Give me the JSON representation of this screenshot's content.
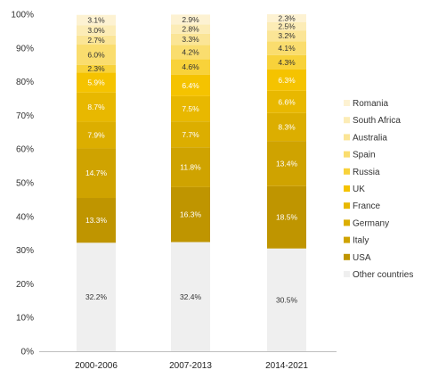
{
  "chart_data": {
    "type": "bar",
    "stacked": true,
    "categories": [
      "2000-2006",
      "2007-2013",
      "2014-2021"
    ],
    "ylim": [
      0,
      100
    ],
    "yticks": [
      "0%",
      "10%",
      "20%",
      "30%",
      "40%",
      "50%",
      "60%",
      "70%",
      "80%",
      "90%",
      "100%"
    ],
    "legend_position": "right",
    "series": [
      {
        "name": "Other countries",
        "color": "#efefef",
        "label_color": "#333333",
        "values": [
          32.2,
          32.4,
          30.5
        ],
        "labels": [
          "32.2%",
          "32.4%",
          "30.5%"
        ]
      },
      {
        "name": "USA",
        "color": "#bf9500",
        "label_color": "#ffffff",
        "values": [
          13.3,
          16.3,
          18.5
        ],
        "labels": [
          "13.3%",
          "16.3%",
          "18.5%"
        ]
      },
      {
        "name": "Italy",
        "color": "#cfa300",
        "label_color": "#ffffff",
        "values": [
          14.7,
          11.8,
          13.4
        ],
        "labels": [
          "14.7%",
          "11.8%",
          "13.4%"
        ]
      },
      {
        "name": "Germany",
        "color": "#dcae00",
        "label_color": "#ffffff",
        "values": [
          7.9,
          7.7,
          8.3
        ],
        "labels": [
          "7.9%",
          "7.7%",
          "8.3%"
        ]
      },
      {
        "name": "France",
        "color": "#e8b800",
        "label_color": "#ffffff",
        "values": [
          8.7,
          7.5,
          6.6
        ],
        "labels": [
          "8.7%",
          "7.5%",
          "6.6%"
        ]
      },
      {
        "name": "UK",
        "color": "#f5c300",
        "label_color": "#ffffff",
        "values": [
          5.9,
          6.4,
          6.3
        ],
        "labels": [
          "5.9%",
          "6.4%",
          "6.3%"
        ]
      },
      {
        "name": "Russia",
        "color": "#f8d23a",
        "label_color": "#333333",
        "values": [
          2.3,
          4.6,
          4.3
        ],
        "labels": [
          "2.3%",
          "4.6%",
          "4.3%"
        ]
      },
      {
        "name": "Spain",
        "color": "#fadd6e",
        "label_color": "#333333",
        "values": [
          6.0,
          4.2,
          4.1
        ],
        "labels": [
          "6.0%",
          "4.2%",
          "4.1%"
        ]
      },
      {
        "name": "Australia",
        "color": "#fbe596",
        "label_color": "#333333",
        "values": [
          2.7,
          3.3,
          3.2
        ],
        "labels": [
          "2.7%",
          "3.3%",
          "3.2%"
        ]
      },
      {
        "name": "South Africa",
        "color": "#fcecb6",
        "label_color": "#333333",
        "values": [
          3.0,
          2.8,
          2.5
        ],
        "labels": [
          "3.0%",
          "2.8%",
          "2.5%"
        ]
      },
      {
        "name": "Romania",
        "color": "#fdf2d2",
        "label_color": "#333333",
        "values": [
          3.1,
          2.9,
          2.3
        ],
        "labels": [
          "3.1%",
          "2.9%",
          "2.3%"
        ]
      }
    ]
  }
}
